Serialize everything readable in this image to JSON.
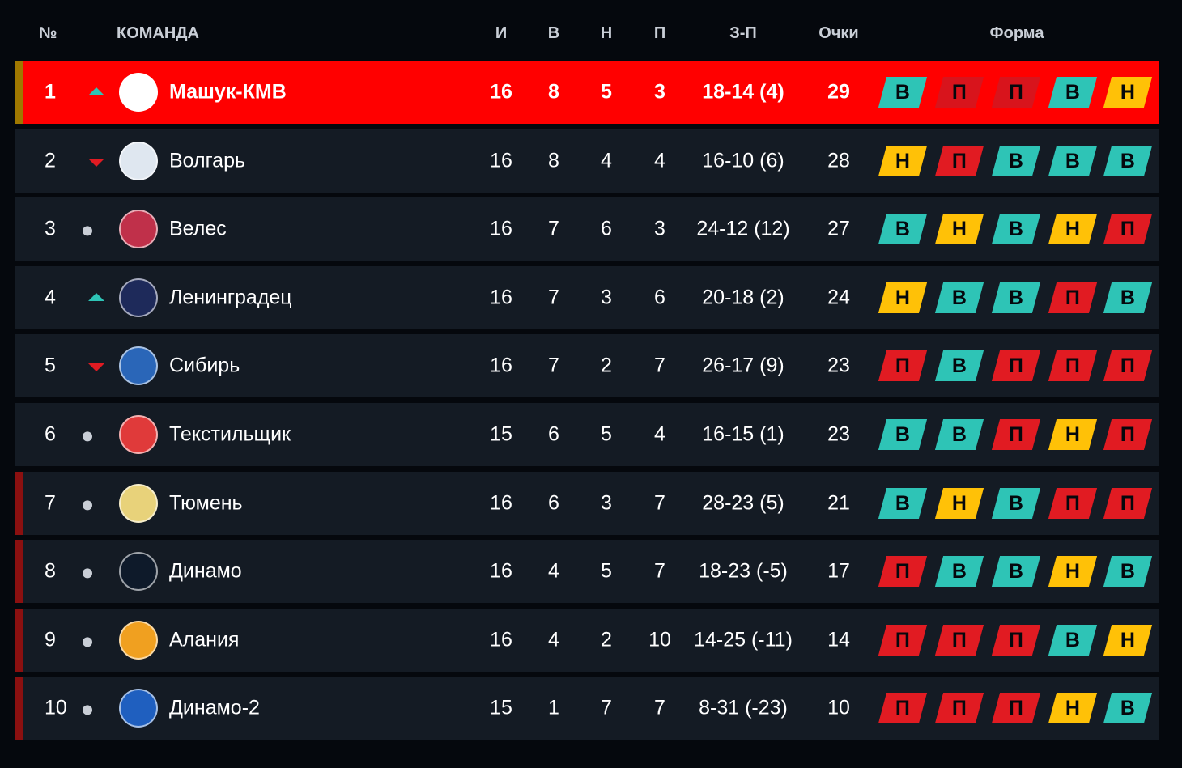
{
  "header": {
    "pos": "№",
    "team": "КОМАНДА",
    "played": "И",
    "won": "В",
    "drawn": "Н",
    "lost": "П",
    "goals": "З-П",
    "points": "Очки",
    "form": "Форма"
  },
  "colors": {
    "win": "#2ec4b6",
    "draw": "#ffc107",
    "loss": "#e11b22",
    "leader_row": "#ff0000",
    "row": "#141b24",
    "leader_bar": "#a07800",
    "relegation_bar": "#8b1010"
  },
  "rows": [
    {
      "pos": "1",
      "trend": "up",
      "team": "Машук-КМВ",
      "played": "16",
      "won": "8",
      "drawn": "5",
      "lost": "3",
      "goals": "18-14 (4)",
      "points": "29",
      "form": [
        "В",
        "П",
        "П",
        "В",
        "Н"
      ],
      "logo": "#ffffff"
    },
    {
      "pos": "2",
      "trend": "down",
      "team": "Волгарь",
      "played": "16",
      "won": "8",
      "drawn": "4",
      "lost": "4",
      "goals": "16-10 (6)",
      "points": "28",
      "form": [
        "Н",
        "П",
        "В",
        "В",
        "В"
      ],
      "logo": "#dfe7f0"
    },
    {
      "pos": "3",
      "trend": "same",
      "team": "Велес",
      "played": "16",
      "won": "7",
      "drawn": "6",
      "lost": "3",
      "goals": "24-12 (12)",
      "points": "27",
      "form": [
        "В",
        "Н",
        "В",
        "Н",
        "П"
      ],
      "logo": "#c0304a"
    },
    {
      "pos": "4",
      "trend": "up",
      "team": "Ленинградец",
      "played": "16",
      "won": "7",
      "drawn": "3",
      "lost": "6",
      "goals": "20-18 (2)",
      "points": "24",
      "form": [
        "Н",
        "В",
        "В",
        "П",
        "В"
      ],
      "logo": "#1e2a5a"
    },
    {
      "pos": "5",
      "trend": "down",
      "team": "Сибирь",
      "played": "16",
      "won": "7",
      "drawn": "2",
      "lost": "7",
      "goals": "26-17 (9)",
      "points": "23",
      "form": [
        "П",
        "В",
        "П",
        "П",
        "П"
      ],
      "logo": "#2a66b8"
    },
    {
      "pos": "6",
      "trend": "same",
      "team": "Текстильщик",
      "played": "15",
      "won": "6",
      "drawn": "5",
      "lost": "4",
      "goals": "16-15 (1)",
      "points": "23",
      "form": [
        "В",
        "В",
        "П",
        "Н",
        "П"
      ],
      "logo": "#e03a3a"
    },
    {
      "pos": "7",
      "trend": "same",
      "team": "Тюмень",
      "played": "16",
      "won": "6",
      "drawn": "3",
      "lost": "7",
      "goals": "28-23 (5)",
      "points": "21",
      "form": [
        "В",
        "Н",
        "В",
        "П",
        "П"
      ],
      "logo": "#e8d27a",
      "bar": "relegation"
    },
    {
      "pos": "8",
      "trend": "same",
      "team": "Динамо",
      "played": "16",
      "won": "4",
      "drawn": "5",
      "lost": "7",
      "goals": "18-23 (-5)",
      "points": "17",
      "form": [
        "П",
        "В",
        "В",
        "Н",
        "В"
      ],
      "logo": "#0e1a2a",
      "bar": "relegation"
    },
    {
      "pos": "9",
      "trend": "same",
      "team": "Алания",
      "played": "16",
      "won": "4",
      "drawn": "2",
      "lost": "10",
      "goals": "14-25 (-11)",
      "points": "14",
      "form": [
        "П",
        "П",
        "П",
        "В",
        "Н"
      ],
      "logo": "#f0a020",
      "bar": "relegation"
    },
    {
      "pos": "10",
      "trend": "same",
      "team": "Динамо-2",
      "played": "15",
      "won": "1",
      "drawn": "7",
      "lost": "7",
      "goals": "8-31 (-23)",
      "points": "10",
      "form": [
        "П",
        "П",
        "П",
        "Н",
        "В"
      ],
      "logo": "#1f5fbf",
      "bar": "relegation"
    }
  ]
}
